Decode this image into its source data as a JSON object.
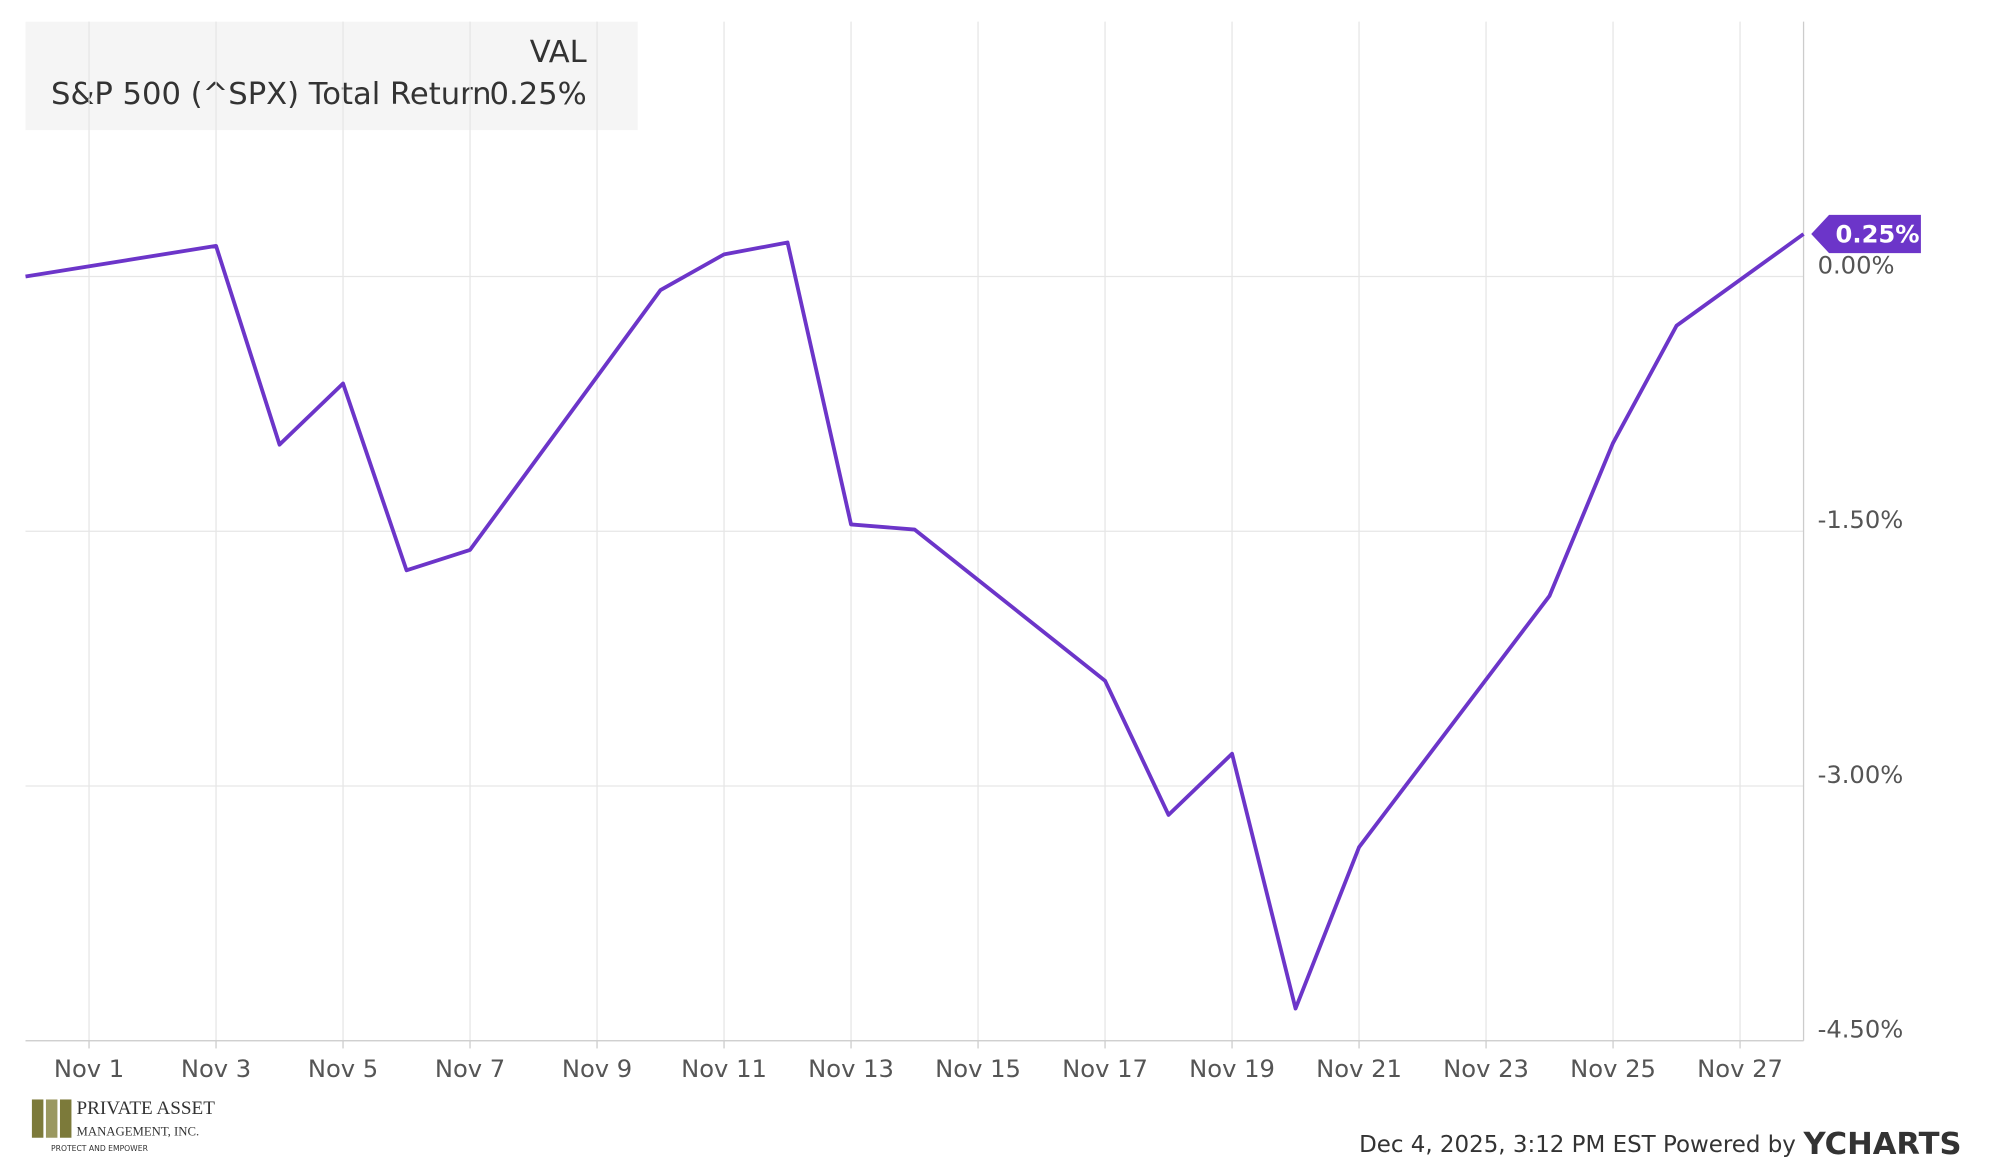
{
  "chart_data": {
    "type": "line",
    "legend_header": "VAL",
    "x": [
      "Oct 31",
      "Nov 3",
      "Nov 4",
      "Nov 5",
      "Nov 6",
      "Nov 7",
      "Nov 10",
      "Nov 11",
      "Nov 12",
      "Nov 13",
      "Nov 14",
      "Nov 17",
      "Nov 18",
      "Nov 19",
      "Nov 20",
      "Nov 21",
      "Nov 24",
      "Nov 25",
      "Nov 26",
      "Nov 28"
    ],
    "series": [
      {
        "name": "S&P 500 (^SPX) Total Return",
        "color": "#6c35c9",
        "values": [
          0,
          0.18,
          -0.99,
          -0.63,
          -1.73,
          -1.61,
          -0.08,
          0.13,
          0.2,
          -1.46,
          -1.49,
          -2.38,
          -3.17,
          -2.81,
          -4.31,
          -3.36,
          -1.88,
          -0.98,
          -0.29,
          0.25
        ],
        "value_labels": [
          null,
          null,
          null,
          null,
          null,
          null,
          null,
          null,
          null,
          null,
          null,
          null,
          null,
          null,
          null,
          null,
          null,
          null,
          null,
          "0.25%"
        ]
      }
    ],
    "xlim": [
      "Oct 31",
      "Nov 28"
    ],
    "xticks": [
      "Nov 1",
      "Nov 3",
      "Nov 5",
      "Nov 7",
      "Nov 9",
      "Nov 11",
      "Nov 13",
      "Nov 15",
      "Nov 17",
      "Nov 19",
      "Nov 21",
      "Nov 23",
      "Nov 25",
      "Nov 27"
    ],
    "ylim": [
      -4.5,
      1.5
    ],
    "yticks": [
      {
        "value": 0,
        "label": "0.00%"
      },
      {
        "value": -1.5,
        "label": "-1.50%"
      },
      {
        "value": -3,
        "label": "-3.00%"
      },
      {
        "value": -4.5,
        "label": "-4.50%"
      }
    ],
    "grid": true
  },
  "footer": {
    "timestamp": "Dec 4, 2025, 3:12 PM EST Powered by",
    "brand": "YCHARTS"
  },
  "logo": {
    "name": "PRIVATE ASSET",
    "subname": "MANAGEMENT, INC.",
    "tagline": "PROTECT AND EMPOWER"
  }
}
